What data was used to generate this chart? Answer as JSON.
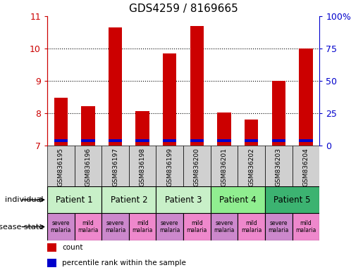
{
  "title": "GDS4259 / 8169665",
  "samples": [
    "GSM836195",
    "GSM836196",
    "GSM836197",
    "GSM836198",
    "GSM836199",
    "GSM836200",
    "GSM836201",
    "GSM836202",
    "GSM836203",
    "GSM836204"
  ],
  "red_values": [
    8.48,
    8.22,
    10.65,
    8.08,
    9.85,
    10.7,
    8.02,
    7.82,
    9.0,
    10.0
  ],
  "blue_values": [
    0.08,
    0.08,
    0.08,
    0.08,
    0.08,
    0.08,
    0.08,
    0.08,
    0.08,
    0.08
  ],
  "blue_bottoms": [
    7.12,
    7.12,
    7.12,
    7.12,
    7.12,
    7.12,
    7.12,
    7.12,
    7.12,
    7.12
  ],
  "ymin": 7,
  "ymax": 11,
  "yticks": [
    7,
    8,
    9,
    10,
    11
  ],
  "yticks_right": [
    0,
    25,
    50,
    75,
    100
  ],
  "patients": [
    {
      "label": "Patient 1",
      "cols": [
        0,
        1
      ],
      "color": "#c8f0c8"
    },
    {
      "label": "Patient 2",
      "cols": [
        2,
        3
      ],
      "color": "#c8f0c8"
    },
    {
      "label": "Patient 3",
      "cols": [
        4,
        5
      ],
      "color": "#c8f0c8"
    },
    {
      "label": "Patient 4",
      "cols": [
        6,
        7
      ],
      "color": "#90ee90"
    },
    {
      "label": "Patient 5",
      "cols": [
        8,
        9
      ],
      "color": "#3cb371"
    }
  ],
  "disease_states": [
    {
      "label": "severe\nmalaria",
      "col": 0,
      "color": "#cc88cc"
    },
    {
      "label": "mild\nmalaria",
      "col": 1,
      "color": "#ee88cc"
    },
    {
      "label": "severe\nmalaria",
      "col": 2,
      "color": "#cc88cc"
    },
    {
      "label": "mild\nmalaria",
      "col": 3,
      "color": "#ee88cc"
    },
    {
      "label": "severe\nmalaria",
      "col": 4,
      "color": "#cc88cc"
    },
    {
      "label": "mild\nmalaria",
      "col": 5,
      "color": "#ee88cc"
    },
    {
      "label": "severe\nmalaria",
      "col": 6,
      "color": "#cc88cc"
    },
    {
      "label": "mild\nmalaria",
      "col": 7,
      "color": "#ee88cc"
    },
    {
      "label": "severe\nmalaria",
      "col": 8,
      "color": "#cc88cc"
    },
    {
      "label": "mild\nmalaria",
      "col": 9,
      "color": "#ee88cc"
    }
  ],
  "bar_color": "#cc0000",
  "blue_color": "#0000cc",
  "bar_width": 0.5,
  "tick_color_left": "#cc0000",
  "tick_color_right": "#0000cc",
  "sample_bg": "#d0d0d0",
  "legend_items": [
    {
      "color": "#cc0000",
      "label": "count"
    },
    {
      "color": "#0000cc",
      "label": "percentile rank within the sample"
    }
  ]
}
